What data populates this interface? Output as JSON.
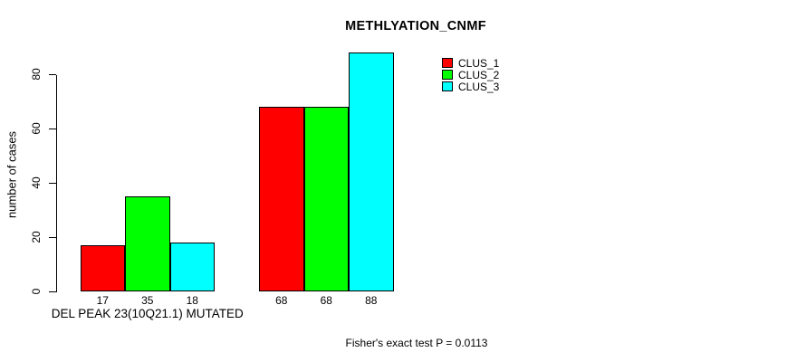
{
  "chart_data": {
    "type": "bar",
    "title": "METHLYATION_CNMF",
    "ylabel": "number of cases",
    "xlabel": "DEL PEAK 23(10Q21.1) MUTATED",
    "footer": "Fisher's exact test P = 0.0113",
    "ylim": [
      0,
      80
    ],
    "y_ticks": [
      0,
      20,
      40,
      60,
      80
    ],
    "grid": false,
    "legend_position": "top-right",
    "groups": [
      "DEL PEAK 23(10Q21.1) MUTATED",
      ""
    ],
    "series": [
      {
        "name": "CLUS_1",
        "color": "#FF0000",
        "values": [
          17,
          68
        ]
      },
      {
        "name": "CLUS_2",
        "color": "#00FF00",
        "values": [
          35,
          68
        ]
      },
      {
        "name": "CLUS_3",
        "color": "#00FFFF",
        "values": [
          18,
          88
        ]
      }
    ],
    "bar_value_labels": [
      [
        "17",
        "35",
        "18"
      ],
      [
        "68",
        "68",
        "88"
      ]
    ],
    "axis_color": "#000000",
    "text_color": "#000000",
    "background": "#FFFFFF"
  }
}
